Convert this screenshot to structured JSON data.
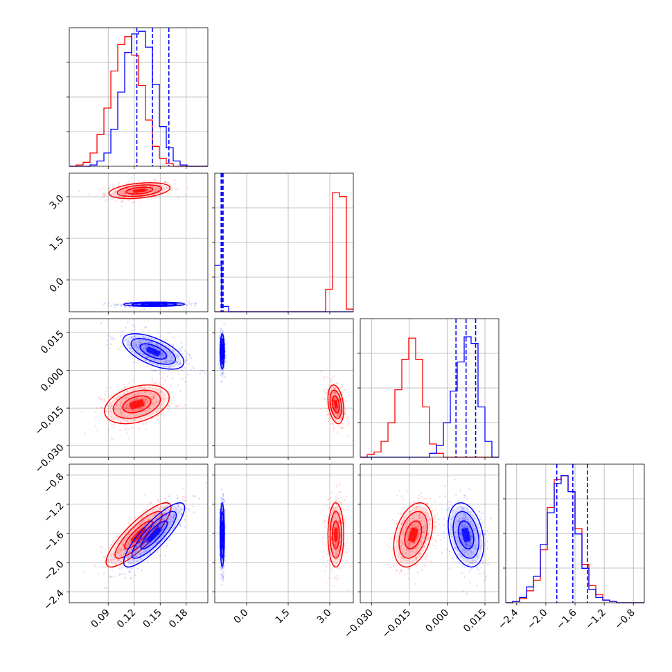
{
  "chart_data": {
    "type": "corner",
    "colors": {
      "posterior_a": "#ff0000",
      "posterior_b": "#0000ff",
      "grid": "#b0b0b0",
      "frame": "#000000"
    },
    "grid": true,
    "parameters": [
      {
        "range": [
          0.045,
          0.205
        ],
        "ticks": [
          "0.09",
          "0.12",
          "0.15",
          "0.18"
        ]
      },
      {
        "range": [
          -1.15,
          3.85
        ],
        "ticks": [
          "0.0",
          "1.5",
          "3.0"
        ]
      },
      {
        "range": [
          -0.0345,
          0.0205
        ],
        "ticks": [
          "-0.030",
          "-0.015",
          "0.000",
          "0.015"
        ]
      },
      {
        "range": [
          -2.55,
          -0.65
        ],
        "ticks": [
          "-2.4",
          "-2.0",
          "-1.6",
          "-1.2",
          "-0.8"
        ]
      }
    ],
    "histograms": [
      {
        "param": 0,
        "bins": [
          0.045,
          0.053,
          0.061,
          0.069,
          0.077,
          0.085,
          0.093,
          0.101,
          0.109,
          0.117,
          0.125,
          0.133,
          0.141,
          0.149,
          0.157,
          0.165,
          0.173,
          0.181,
          0.189,
          0.197,
          0.205
        ],
        "ymax": 1.0,
        "series": [
          {
            "name": "posterior_a",
            "color": "#ff0000",
            "values": [
              0.0,
              0.01,
              0.03,
              0.1,
              0.24,
              0.44,
              0.72,
              0.92,
              0.98,
              0.84,
              0.61,
              0.35,
              0.15,
              0.06,
              0.02,
              0.0,
              0.0,
              0.0,
              0.0,
              0.0
            ]
          },
          {
            "name": "posterior_b",
            "color": "#0000ff",
            "values": [
              0.0,
              0.0,
              0.0,
              0.01,
              0.04,
              0.1,
              0.28,
              0.56,
              0.86,
              1.0,
              1.02,
              0.9,
              0.62,
              0.3,
              0.14,
              0.04,
              0.01,
              0.0,
              0.0,
              0.0
            ]
          }
        ],
        "quantiles": [
          0.123,
          0.141,
          0.16
        ]
      },
      {
        "param": 1,
        "bins": [
          -1.15,
          -0.9,
          -0.65,
          -0.4,
          -0.15,
          0.1,
          0.35,
          0.6,
          0.85,
          1.1,
          1.35,
          1.6,
          1.85,
          2.1,
          2.35,
          2.6,
          2.85,
          3.1,
          3.35,
          3.6,
          3.85
        ],
        "ymax": 1.0,
        "series": [
          {
            "name": "posterior_a",
            "color": "#ff0000",
            "values": [
              0,
              0,
              0,
              0,
              0,
              0,
              0,
              0,
              0,
              0,
              0,
              0,
              0,
              0,
              0,
              0,
              0.17,
              0.9,
              0.87,
              0.02
            ]
          },
          {
            "name": "posterior_b",
            "color": "#0000ff",
            "values": [
              0.35,
              0.04,
              0,
              0,
              0,
              0,
              0,
              0,
              0,
              0,
              0,
              0,
              0,
              0,
              0,
              0,
              0,
              0,
              0,
              0
            ]
          }
        ],
        "quantiles": [
          -0.92,
          -0.89,
          -0.85
        ]
      },
      {
        "param": 2,
        "bins": [
          -0.0345,
          -0.03175,
          -0.029,
          -0.02625,
          -0.0235,
          -0.02075,
          -0.018,
          -0.01525,
          -0.0125,
          -0.00975,
          -0.007,
          -0.00425,
          -0.0015,
          0.00125,
          0.004,
          0.00675,
          0.0095,
          0.01225,
          0.015,
          0.01775,
          0.0205
        ],
        "ymax": 1.0,
        "series": [
          {
            "name": "posterior_a",
            "color": "#ff0000",
            "values": [
              0.0,
              0.02,
              0.04,
              0.12,
              0.26,
              0.51,
              0.74,
              0.9,
              0.74,
              0.38,
              0.1,
              0.03,
              0.0,
              0.0,
              0.0,
              0.0,
              0.0,
              0.0,
              0.0,
              0.0
            ]
          },
          {
            "name": "posterior_b",
            "color": "#0000ff",
            "values": [
              0,
              0,
              0,
              0,
              0,
              0,
              0,
              0,
              0,
              0.0,
              0.03,
              0.09,
              0.26,
              0.5,
              0.72,
              0.91,
              0.86,
              0.38,
              0.12,
              0.0
            ]
          }
        ],
        "quantiles": [
          0.0035,
          0.0075,
          0.0113
        ]
      },
      {
        "param": 3,
        "bins": [
          -2.55,
          -2.455,
          -2.36,
          -2.265,
          -2.17,
          -2.075,
          -1.98,
          -1.885,
          -1.79,
          -1.695,
          -1.6,
          -1.505,
          -1.41,
          -1.315,
          -1.22,
          -1.125,
          -1.03,
          -0.935,
          -0.84,
          -0.745,
          -0.65
        ],
        "ymax": 1.0,
        "series": [
          {
            "name": "posterior_a",
            "color": "#ff0000",
            "values": [
              0.0,
              0.01,
              0.03,
              0.09,
              0.17,
              0.4,
              0.72,
              0.93,
              0.96,
              0.84,
              0.56,
              0.29,
              0.13,
              0.06,
              0.02,
              0.01,
              0.0,
              0.0,
              0.0,
              0.0
            ]
          },
          {
            "name": "posterior_b",
            "color": "#0000ff",
            "values": [
              0.0,
              0.01,
              0.04,
              0.12,
              0.2,
              0.44,
              0.68,
              0.9,
              0.96,
              0.84,
              0.52,
              0.26,
              0.1,
              0.04,
              0.02,
              0.01,
              0.0,
              0.0,
              0.0,
              0.0
            ]
          }
        ],
        "quantiles": [
          -1.85,
          -1.63,
          -1.43
        ]
      }
    ],
    "scatter_panels": [
      {
        "x": 0,
        "y": 1,
        "series": [
          {
            "name": "posterior_a",
            "color": "#ff0000",
            "mean": [
              0.126,
              3.22
            ],
            "sd": [
              0.016,
              0.13
            ],
            "rho": 0.35
          },
          {
            "name": "posterior_b",
            "color": "#0000ff",
            "mean": [
              0.143,
              -0.88
            ],
            "sd": [
              0.016,
              0.035
            ],
            "rho": 0.05
          }
        ]
      },
      {
        "x": 0,
        "y": 2,
        "series": [
          {
            "name": "posterior_a",
            "color": "#ff0000",
            "mean": [
              0.123,
              -0.0135
            ],
            "sd": [
              0.017,
              0.0035
            ],
            "rho": 0.35
          },
          {
            "name": "posterior_b",
            "color": "#0000ff",
            "mean": [
              0.142,
              0.0075
            ],
            "sd": [
              0.016,
              0.0032
            ],
            "rho": -0.6
          }
        ]
      },
      {
        "x": 1,
        "y": 2,
        "series": [
          {
            "name": "posterior_a",
            "color": "#ff0000",
            "mean": [
              3.22,
              -0.0135
            ],
            "sd": [
              0.13,
              0.0035
            ],
            "rho": -0.3
          },
          {
            "name": "posterior_b",
            "color": "#0000ff",
            "mean": [
              -0.88,
              0.0075
            ],
            "sd": [
              0.035,
              0.0032
            ],
            "rho": 0.0
          }
        ]
      },
      {
        "x": 0,
        "y": 3,
        "series": [
          {
            "name": "posterior_a",
            "color": "#ff0000",
            "mean": [
              0.125,
              -1.62
            ],
            "sd": [
              0.017,
              0.2
            ],
            "rho": 0.85
          },
          {
            "name": "posterior_b",
            "color": "#0000ff",
            "mean": [
              0.143,
              -1.62
            ],
            "sd": [
              0.016,
              0.2
            ],
            "rho": 0.85
          }
        ]
      },
      {
        "x": 1,
        "y": 3,
        "series": [
          {
            "name": "posterior_a",
            "color": "#ff0000",
            "mean": [
              3.22,
              -1.62
            ],
            "sd": [
              0.13,
              0.2
            ],
            "rho": 0.0
          },
          {
            "name": "posterior_b",
            "color": "#0000ff",
            "mean": [
              -0.88,
              -1.62
            ],
            "sd": [
              0.035,
              0.2
            ],
            "rho": 0.0
          }
        ]
      },
      {
        "x": 2,
        "y": 3,
        "series": [
          {
            "name": "posterior_a",
            "color": "#ff0000",
            "mean": [
              -0.0135,
              -1.62
            ],
            "sd": [
              0.0035,
              0.2
            ],
            "rho": 0.35
          },
          {
            "name": "posterior_b",
            "color": "#0000ff",
            "mean": [
              0.0075,
              -1.62
            ],
            "sd": [
              0.0032,
              0.2
            ],
            "rho": -0.3
          }
        ]
      }
    ]
  }
}
